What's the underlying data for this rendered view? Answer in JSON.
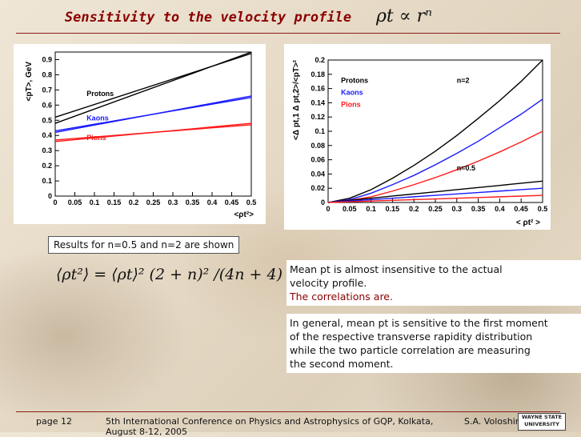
{
  "slide": {
    "title": "Sensitivity to the velocity profile",
    "formula_top": "ρt ∝ rⁿ",
    "caption": "Results for n=0.5 and n=2 are shown",
    "formula_main": "⟨ρt²⟩ = ⟨ρt⟩² (2 + n)² /(4n + 4)",
    "text1_line1": "Mean pt is almost insensitive to the actual",
    "text1_line2": "velocity profile.",
    "text1_line3": "The correlations are.",
    "text2_line1": "In general, mean pt is sensitive to the first moment",
    "text2_line2": "of the respective transverse rapidity distribution",
    "text2_line3": "while the two particle correlation are measuring",
    "text2_line4": "the second moment.",
    "footer_page": "page 12",
    "footer_conference": "5th International Conference on Physics and Astrophysics of GQP, Kolkata, August 8-12, 2005",
    "footer_author": "S.A. Voloshin",
    "logo_text": "WAYNE STATE UNIVERSITY"
  },
  "colors": {
    "title": "#8b0000",
    "protons": "#000000",
    "kaons": "#1a1aff",
    "pions": "#ff1a1a"
  },
  "chart_data": [
    {
      "type": "line",
      "ylabel": "<pT>, GeV",
      "xlabel": "<ρt²>",
      "xlim": [
        0,
        0.5
      ],
      "ylim": [
        0,
        0.95
      ],
      "xticks": [
        "0",
        "0.05",
        "0.1",
        "0.15",
        "0.2",
        "0.25",
        "0.3",
        "0.35",
        "0.4",
        "0.45",
        "0.5"
      ],
      "yticks": [
        "0",
        "0.1",
        "0.2",
        "0.3",
        "0.4",
        "0.5",
        "0.6",
        "0.7",
        "0.8",
        "0.9"
      ],
      "series": [
        {
          "name": "Protons",
          "color": "#000000",
          "x": [
            0,
            0.5
          ],
          "y": [
            0.48,
            0.95
          ]
        },
        {
          "name": "",
          "color": "#000000",
          "x": [
            0,
            0.5
          ],
          "y": [
            0.52,
            0.94
          ]
        },
        {
          "name": "Kaons",
          "color": "#1a1aff",
          "x": [
            0,
            0.5
          ],
          "y": [
            0.42,
            0.66
          ]
        },
        {
          "name": "",
          "color": "#1a1aff",
          "x": [
            0,
            0.5
          ],
          "y": [
            0.43,
            0.65
          ]
        },
        {
          "name": "Pions",
          "color": "#ff1a1a",
          "x": [
            0,
            0.5
          ],
          "y": [
            0.36,
            0.48
          ]
        },
        {
          "name": "",
          "color": "#ff1a1a",
          "x": [
            0,
            0.5
          ],
          "y": [
            0.37,
            0.47
          ]
        }
      ]
    },
    {
      "type": "line",
      "ylabel": "<Δ pt,1 Δ pt,2>/<pT>²",
      "xlabel": "< ρt² >",
      "xlim": [
        0,
        0.5
      ],
      "ylim": [
        0,
        0.2
      ],
      "xticks": [
        "0",
        "0.05",
        "0.1",
        "0.15",
        "0.2",
        "0.25",
        "0.3",
        "0.35",
        "0.4",
        "0.45",
        "0.5"
      ],
      "yticks": [
        "0",
        "0.02",
        "0.04",
        "0.06",
        "0.08",
        "0.1",
        "0.12",
        "0.14",
        "0.16",
        "0.18",
        "0.2"
      ],
      "legend": [
        "Protons",
        "Kaons",
        "Pions"
      ],
      "annotations": [
        "n=2",
        "n=0.5"
      ],
      "series": [
        {
          "name": "Protons",
          "color": "#000000",
          "x": [
            0,
            0.05,
            0.1,
            0.15,
            0.2,
            0.25,
            0.3,
            0.35,
            0.4,
            0.45,
            0.5
          ],
          "y": [
            0.0,
            0.006,
            0.018,
            0.034,
            0.052,
            0.072,
            0.094,
            0.118,
            0.143,
            0.17,
            0.2
          ]
        },
        {
          "name": "Kaons",
          "color": "#1a1aff",
          "x": [
            0,
            0.05,
            0.1,
            0.15,
            0.2,
            0.25,
            0.3,
            0.35,
            0.4,
            0.45,
            0.5
          ],
          "y": [
            0.0,
            0.004,
            0.013,
            0.025,
            0.038,
            0.053,
            0.069,
            0.086,
            0.105,
            0.124,
            0.145
          ]
        },
        {
          "name": "Pions",
          "color": "#ff1a1a",
          "x": [
            0,
            0.05,
            0.1,
            0.15,
            0.2,
            0.25,
            0.3,
            0.35,
            0.4,
            0.45,
            0.5
          ],
          "y": [
            0.0,
            0.003,
            0.008,
            0.016,
            0.025,
            0.035,
            0.046,
            0.058,
            0.071,
            0.085,
            0.1
          ]
        },
        {
          "name": "",
          "color": "#000000",
          "x": [
            0,
            0.05,
            0.1,
            0.15,
            0.2,
            0.25,
            0.3,
            0.35,
            0.4,
            0.45,
            0.5
          ],
          "y": [
            0.0,
            0.003,
            0.006,
            0.009,
            0.012,
            0.015,
            0.018,
            0.021,
            0.024,
            0.027,
            0.03
          ]
        },
        {
          "name": "",
          "color": "#1a1aff",
          "x": [
            0,
            0.05,
            0.1,
            0.15,
            0.2,
            0.25,
            0.3,
            0.35,
            0.4,
            0.45,
            0.5
          ],
          "y": [
            0.0,
            0.002,
            0.004,
            0.006,
            0.008,
            0.01,
            0.012,
            0.014,
            0.016,
            0.018,
            0.02
          ]
        },
        {
          "name": "",
          "color": "#ff1a1a",
          "x": [
            0,
            0.05,
            0.1,
            0.15,
            0.2,
            0.25,
            0.3,
            0.35,
            0.4,
            0.45,
            0.5
          ],
          "y": [
            0.0,
            0.001,
            0.002,
            0.003,
            0.004,
            0.005,
            0.006,
            0.007,
            0.008,
            0.009,
            0.01
          ]
        }
      ]
    }
  ]
}
